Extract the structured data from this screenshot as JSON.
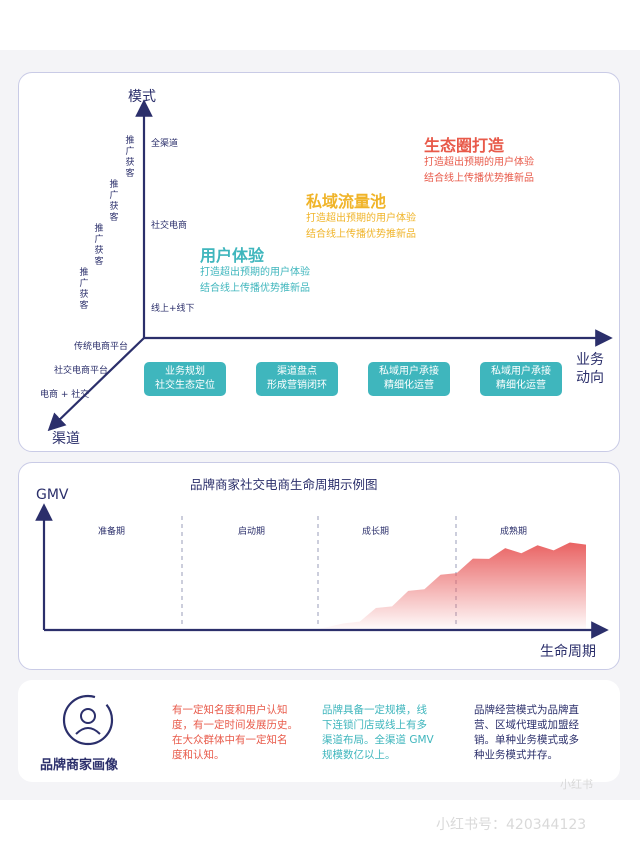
{
  "top_diagram": {
    "y_axis_label": "模式",
    "x_axis_label_line1": "业务",
    "x_axis_label_line2": "动向",
    "diag_axis_label": "渠道",
    "y_ticks": [
      "全渠道",
      "社交电商",
      "线上+线下"
    ],
    "diag_ticks": [
      "传统电商平台",
      "社交电商平台",
      "电商 + 社交"
    ],
    "vertical_labels": [
      "推广获客",
      "推广获客",
      "推广获客",
      "推广获客"
    ],
    "x_boxes": [
      {
        "line1": "业务规划",
        "line2": "社交生态定位"
      },
      {
        "line1": "渠道盘点",
        "line2": "形成营销闭环"
      },
      {
        "line1": "私域用户承接",
        "line2": "精细化运营"
      },
      {
        "line1": "私域用户承接",
        "line2": "精细化运营"
      }
    ],
    "stages": [
      {
        "title": "用户体验",
        "desc1": "打造超出预期的用户体验",
        "desc2": "结合线上传播优势推新品",
        "color": "#3fb6bd"
      },
      {
        "title": "私域流量池",
        "desc1": "打造超出预期的用户体验",
        "desc2": "结合线上传播优势推新品",
        "color": "#f0b429"
      },
      {
        "title": "生态圈打造",
        "desc1": "打造超出预期的用户体验",
        "desc2": "结合线上传播优势推新品",
        "color": "#e85a4a"
      }
    ]
  },
  "chart_data": {
    "type": "area",
    "title": "品牌商家社交电商生命周期示例图",
    "ylabel": "GMV",
    "xlabel": "生命周期",
    "phases": [
      "准备期",
      "启动期",
      "成长期",
      "成熟期"
    ],
    "x": [
      0.0,
      0.04,
      0.08,
      0.12,
      0.16,
      0.2,
      0.24,
      0.28,
      0.32,
      0.36,
      0.4,
      0.44,
      0.48,
      0.52,
      0.56,
      0.6,
      0.64,
      0.68,
      0.72,
      0.76,
      0.8,
      0.84,
      0.88,
      0.92,
      0.96,
      1.0
    ],
    "values": [
      0,
      0,
      0,
      0,
      0,
      0,
      0,
      0,
      0,
      0.03,
      0.07,
      0.12,
      0.2,
      0.28,
      0.38,
      0.46,
      0.55,
      0.63,
      0.72,
      0.78,
      0.83,
      0.84,
      0.86,
      0.87,
      0.89,
      0.93
    ],
    "color": "#e85a5a"
  },
  "bottom_card": {
    "icon": "person-circle-icon",
    "title": "品牌商家画像",
    "col1": [
      "有一定知名度和用户认知",
      "度，有一定时间发展历史。",
      "在大众群体中有一定知名",
      "度和认知。"
    ],
    "col2": [
      "品牌具备一定规模，线",
      "下连锁门店或线上有多",
      "渠道布局。全渠道 GMV",
      "规模数亿以上。"
    ],
    "col3": [
      "品牌经营模式为品牌直",
      "营、区域代理或加盟经",
      "销。单种业务模式或多",
      "种业务模式并存。"
    ],
    "col1_color": "#e85a4a",
    "col2_color": "#3fb6bd",
    "col3_color": "#2b2f6b"
  },
  "watermarks": [
    "小红书号：420344123",
    "小红书"
  ]
}
